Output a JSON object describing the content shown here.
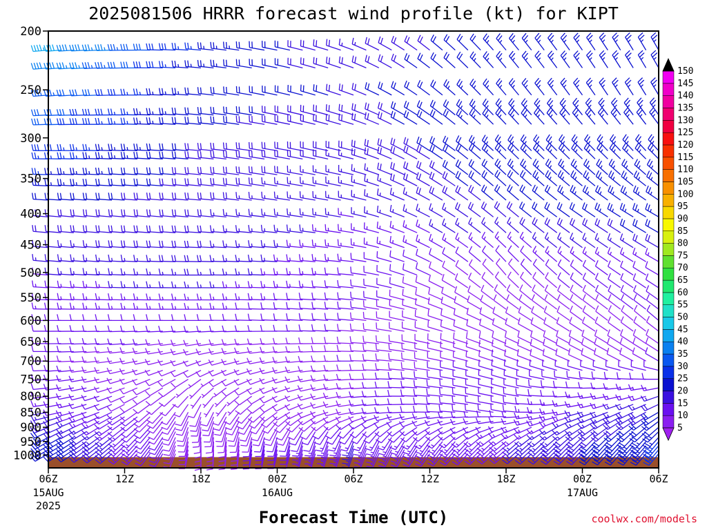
{
  "title": "2025081506 HRRR forecast wind profile (kt) for KIPT",
  "credit": "coolwx.com/models",
  "colors": {
    "terrain": "#9a4f2b",
    "axis": "#000000",
    "credit": "#e0102f"
  },
  "chart_data": {
    "type": "wind-barb time-height section",
    "xlabel": "Forecast Time (UTC)",
    "ylabel": "",
    "y_scale": "pressure (log)",
    "ylim_hPa": [
      1050,
      200
    ],
    "y_ticks": [
      200,
      250,
      300,
      350,
      400,
      450,
      500,
      550,
      600,
      650,
      700,
      750,
      800,
      850,
      900,
      950,
      1000
    ],
    "x_range_hours": [
      0,
      48
    ],
    "x_ticks": [
      {
        "hour": 0,
        "label": "06Z",
        "date": "15AUG",
        "year": "2025"
      },
      {
        "hour": 6,
        "label": "12Z",
        "date": "",
        "year": ""
      },
      {
        "hour": 12,
        "label": "18Z",
        "date": "",
        "year": ""
      },
      {
        "hour": 18,
        "label": "00Z",
        "date": "16AUG",
        "year": ""
      },
      {
        "hour": 24,
        "label": "06Z",
        "date": "",
        "year": ""
      },
      {
        "hour": 30,
        "label": "12Z",
        "date": "",
        "year": ""
      },
      {
        "hour": 36,
        "label": "18Z",
        "date": "",
        "year": ""
      },
      {
        "hour": 42,
        "label": "00Z",
        "date": "17AUG",
        "year": ""
      },
      {
        "hour": 48,
        "label": "06Z",
        "date": "",
        "year": ""
      }
    ],
    "surface_pressure_hPa": 1008,
    "barb_hours_step": 1,
    "barb_levels_hPa": [
      215,
      230,
      255,
      275,
      285,
      315,
      325,
      345,
      360,
      380,
      405,
      430,
      455,
      480,
      505,
      530,
      555,
      575,
      600,
      625,
      655,
      675,
      700,
      725,
      750,
      775,
      800,
      825,
      850,
      865,
      880,
      900,
      915,
      935,
      950,
      965,
      980,
      995
    ],
    "wind_profile": [
      {
        "p": 215,
        "h": 0,
        "dir": 265,
        "kt": 43
      },
      {
        "p": 215,
        "h": 12,
        "dir": 275,
        "kt": 25
      },
      {
        "p": 215,
        "h": 24,
        "dir": 290,
        "kt": 17
      },
      {
        "p": 215,
        "h": 36,
        "dir": 320,
        "kt": 24
      },
      {
        "p": 215,
        "h": 48,
        "dir": 330,
        "kt": 25
      },
      {
        "p": 250,
        "h": 0,
        "dir": 265,
        "kt": 35
      },
      {
        "p": 250,
        "h": 12,
        "dir": 275,
        "kt": 22
      },
      {
        "p": 250,
        "h": 24,
        "dir": 290,
        "kt": 20
      },
      {
        "p": 250,
        "h": 36,
        "dir": 320,
        "kt": 25
      },
      {
        "p": 250,
        "h": 48,
        "dir": 330,
        "kt": 25
      },
      {
        "p": 300,
        "h": 0,
        "dir": 270,
        "kt": 30
      },
      {
        "p": 300,
        "h": 12,
        "dir": 275,
        "kt": 20
      },
      {
        "p": 300,
        "h": 24,
        "dir": 285,
        "kt": 18
      },
      {
        "p": 300,
        "h": 36,
        "dir": 315,
        "kt": 25
      },
      {
        "p": 300,
        "h": 48,
        "dir": 320,
        "kt": 25
      },
      {
        "p": 400,
        "h": 0,
        "dir": 275,
        "kt": 20
      },
      {
        "p": 400,
        "h": 12,
        "dir": 275,
        "kt": 18
      },
      {
        "p": 400,
        "h": 24,
        "dir": 280,
        "kt": 15
      },
      {
        "p": 400,
        "h": 36,
        "dir": 310,
        "kt": 20
      },
      {
        "p": 400,
        "h": 48,
        "dir": 300,
        "kt": 25
      },
      {
        "p": 500,
        "h": 0,
        "dir": 275,
        "kt": 15
      },
      {
        "p": 500,
        "h": 12,
        "dir": 270,
        "kt": 18
      },
      {
        "p": 500,
        "h": 24,
        "dir": 275,
        "kt": 12
      },
      {
        "p": 500,
        "h": 36,
        "dir": 320,
        "kt": 10
      },
      {
        "p": 500,
        "h": 48,
        "dir": 300,
        "kt": 12
      },
      {
        "p": 600,
        "h": 0,
        "dir": 270,
        "kt": 12
      },
      {
        "p": 600,
        "h": 12,
        "dir": 270,
        "kt": 12
      },
      {
        "p": 600,
        "h": 24,
        "dir": 275,
        "kt": 10
      },
      {
        "p": 600,
        "h": 36,
        "dir": 300,
        "kt": 8
      },
      {
        "p": 600,
        "h": 48,
        "dir": 310,
        "kt": 10
      },
      {
        "p": 700,
        "h": 0,
        "dir": 270,
        "kt": 10
      },
      {
        "p": 700,
        "h": 12,
        "dir": 250,
        "kt": 8
      },
      {
        "p": 700,
        "h": 24,
        "dir": 270,
        "kt": 10
      },
      {
        "p": 700,
        "h": 36,
        "dir": 290,
        "kt": 10
      },
      {
        "p": 700,
        "h": 48,
        "dir": 300,
        "kt": 10
      },
      {
        "p": 850,
        "h": 0,
        "dir": 260,
        "kt": 15
      },
      {
        "p": 850,
        "h": 12,
        "dir": 200,
        "kt": 8
      },
      {
        "p": 850,
        "h": 24,
        "dir": 260,
        "kt": 10
      },
      {
        "p": 850,
        "h": 36,
        "dir": 280,
        "kt": 12
      },
      {
        "p": 850,
        "h": 48,
        "dir": 240,
        "kt": 20
      },
      {
        "p": 950,
        "h": 0,
        "dir": 240,
        "kt": 25
      },
      {
        "p": 950,
        "h": 12,
        "dir": 180,
        "kt": 8
      },
      {
        "p": 950,
        "h": 24,
        "dir": 200,
        "kt": 15
      },
      {
        "p": 950,
        "h": 36,
        "dir": 230,
        "kt": 15
      },
      {
        "p": 950,
        "h": 48,
        "dir": 220,
        "kt": 25
      }
    ],
    "colorbar": {
      "levels": [
        5,
        10,
        15,
        20,
        25,
        30,
        35,
        40,
        45,
        50,
        55,
        60,
        65,
        70,
        75,
        80,
        85,
        90,
        95,
        100,
        105,
        110,
        115,
        120,
        125,
        130,
        135,
        140,
        145,
        150
      ],
      "colors": [
        "#8a1ef0",
        "#6a10f0",
        "#3a10e0",
        "#0a10d0",
        "#0a30e8",
        "#0a58f0",
        "#0a80f0",
        "#10a8f0",
        "#18c8e8",
        "#20e0c8",
        "#20f0a0",
        "#20e870",
        "#30e040",
        "#60e030",
        "#a0e820",
        "#d8f010",
        "#f8f800",
        "#f8d800",
        "#f8b000",
        "#f89000",
        "#f87000",
        "#f85000",
        "#f83000",
        "#f81010",
        "#f00040",
        "#f00070",
        "#f000a0",
        "#f000c8",
        "#f000f0",
        "#000000"
      ],
      "below_color": "#a020f0",
      "above_color": "#000000"
    }
  }
}
